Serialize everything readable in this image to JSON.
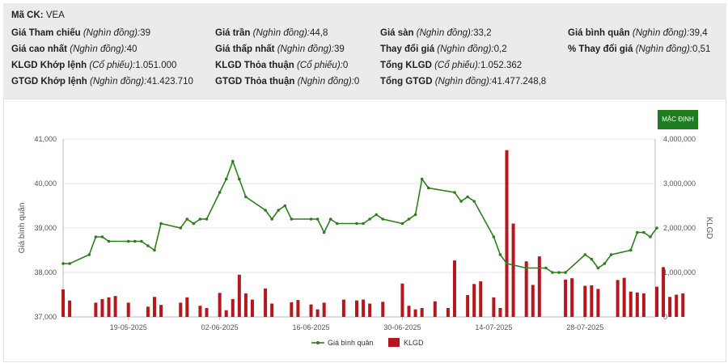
{
  "header": {
    "symbol": {
      "label": "Mã CK:",
      "value": "VEA"
    },
    "rows": [
      [
        {
          "label": "Giá Tham chiếu",
          "unit": "(Nghìn đồng):",
          "value": "39"
        },
        {
          "label": "Giá trần",
          "unit": "(Nghìn đồng):",
          "value": "44,8"
        },
        {
          "label": "Giá sàn",
          "unit": "(Nghìn đồng):",
          "value": "33,2"
        },
        {
          "label": "Giá bình quân",
          "unit": "(Nghìn đồng):",
          "value": "39,4"
        }
      ],
      [
        {
          "label": "Giá cao nhất",
          "unit": "(Nghìn đồng):",
          "value": "40"
        },
        {
          "label": "Giá thấp nhất",
          "unit": "(Nghìn đồng):",
          "value": "39"
        },
        {
          "label": "Thay đổi giá",
          "unit": "(Nghìn đồng):",
          "value": "0,2"
        },
        {
          "label": "% Thay đổi giá",
          "unit": "(Nghìn đồng):",
          "value": "0,51"
        }
      ],
      [
        {
          "label": "KLGD Khớp lệnh",
          "unit": "(Cổ phiếu):",
          "value": "1.051.000"
        },
        {
          "label": "KLGD Thỏa thuận",
          "unit": "(Cổ phiếu):",
          "value": "0"
        },
        {
          "label": "Tổng KLGD",
          "unit": "(Cổ phiếu):",
          "value": "1.052.362"
        }
      ],
      [
        {
          "label": "GTGD Khớp lệnh",
          "unit": "(Nghìn đồng):",
          "value": "41.423.710"
        },
        {
          "label": "GTGD Thỏa thuận",
          "unit": "(Nghìn đồng):",
          "value": "0"
        },
        {
          "label": "Tổng GTGD",
          "unit": "(Nghìn đồng):",
          "value": "41.477.248,8"
        }
      ]
    ]
  },
  "default_button": "MẶC ĐỊNH",
  "colors": {
    "line": "#2e7d1e",
    "bar": "#b5171e",
    "header_bg": "#ebebeb",
    "button": "#1e7d1e"
  },
  "chart_data": {
    "type": "line+bar",
    "ylabel_left": "Giá bình quân",
    "ylabel_right": "KLGD",
    "left_axis": {
      "min": 37000,
      "max": 41000,
      "ticks": [
        37000,
        38000,
        39000,
        40000,
        41000
      ],
      "tick_labels": [
        "37,000",
        "38,000",
        "39,000",
        "40,000",
        "41,000"
      ]
    },
    "right_axis": {
      "min": 0,
      "max": 4000000,
      "ticks": [
        0,
        1000000,
        2000000,
        3000000,
        4000000
      ],
      "tick_labels": [
        "0",
        "1,000,000",
        "2,000,000",
        "3,000,000",
        "4,000,000"
      ]
    },
    "x_range": [
      "2025-05-08",
      "2025-08-08"
    ],
    "x_ticks": [
      {
        "date": "2025-05-19",
        "label": "19-05-2025"
      },
      {
        "date": "2025-06-02",
        "label": "02-06-2025"
      },
      {
        "date": "2025-06-16",
        "label": "16-06-2025"
      },
      {
        "date": "2025-06-30",
        "label": "30-06-2025"
      },
      {
        "date": "2025-07-14",
        "label": "14-07-2025"
      },
      {
        "date": "2025-07-28",
        "label": "28-07-2025"
      }
    ],
    "legend": [
      {
        "name": "Giá bình quân",
        "kind": "line"
      },
      {
        "name": "KLGD",
        "kind": "bar"
      }
    ],
    "series": [
      {
        "name": "Giá bình quân",
        "kind": "line",
        "points": [
          [
            "2025-05-09",
            38200
          ],
          [
            "2025-05-10",
            38200
          ],
          [
            "2025-05-13",
            38400
          ],
          [
            "2025-05-14",
            38800
          ],
          [
            "2025-05-15",
            38800
          ],
          [
            "2025-05-16",
            38700
          ],
          [
            "2025-05-19",
            38700
          ],
          [
            "2025-05-20",
            38700
          ],
          [
            "2025-05-21",
            38700
          ],
          [
            "2025-05-22",
            38600
          ],
          [
            "2025-05-23",
            38500
          ],
          [
            "2025-05-24",
            39100
          ],
          [
            "2025-05-27",
            39000
          ],
          [
            "2025-05-28",
            39200
          ],
          [
            "2025-05-29",
            39100
          ],
          [
            "2025-05-30",
            39200
          ],
          [
            "2025-05-31",
            39200
          ],
          [
            "2025-06-02",
            39800
          ],
          [
            "2025-06-03",
            40100
          ],
          [
            "2025-06-04",
            40500
          ],
          [
            "2025-06-05",
            40100
          ],
          [
            "2025-06-06",
            39700
          ],
          [
            "2025-06-09",
            39400
          ],
          [
            "2025-06-10",
            39200
          ],
          [
            "2025-06-11",
            39400
          ],
          [
            "2025-06-12",
            39500
          ],
          [
            "2025-06-13",
            39200
          ],
          [
            "2025-06-16",
            39200
          ],
          [
            "2025-06-17",
            39200
          ],
          [
            "2025-06-18",
            38900
          ],
          [
            "2025-06-19",
            39200
          ],
          [
            "2025-06-20",
            39100
          ],
          [
            "2025-06-23",
            39100
          ],
          [
            "2025-06-24",
            39100
          ],
          [
            "2025-06-25",
            39200
          ],
          [
            "2025-06-26",
            39300
          ],
          [
            "2025-06-27",
            39200
          ],
          [
            "2025-06-30",
            39100
          ],
          [
            "2025-07-01",
            39200
          ],
          [
            "2025-07-02",
            39300
          ],
          [
            "2025-07-03",
            40100
          ],
          [
            "2025-07-04",
            39900
          ],
          [
            "2025-07-08",
            39800
          ],
          [
            "2025-07-09",
            39600
          ],
          [
            "2025-07-10",
            39700
          ],
          [
            "2025-07-11",
            39600
          ],
          [
            "2025-07-14",
            38800
          ],
          [
            "2025-07-15",
            38400
          ],
          [
            "2025-07-16",
            38200
          ],
          [
            "2025-07-19",
            38100
          ],
          [
            "2025-07-22",
            38100
          ],
          [
            "2025-07-23",
            38000
          ],
          [
            "2025-07-24",
            38000
          ],
          [
            "2025-07-25",
            38000
          ],
          [
            "2025-07-28",
            38400
          ],
          [
            "2025-07-29",
            38300
          ],
          [
            "2025-07-30",
            38100
          ],
          [
            "2025-07-31",
            38200
          ],
          [
            "2025-08-01",
            38400
          ],
          [
            "2025-08-04",
            38500
          ],
          [
            "2025-08-05",
            38900
          ],
          [
            "2025-08-06",
            38900
          ],
          [
            "2025-08-07",
            38800
          ],
          [
            "2025-08-08",
            39000
          ]
        ]
      },
      {
        "name": "KLGD",
        "kind": "bar",
        "points": [
          [
            "2025-05-09",
            620000
          ],
          [
            "2025-05-10",
            370000
          ],
          [
            "2025-05-14",
            320000
          ],
          [
            "2025-05-15",
            400000
          ],
          [
            "2025-05-16",
            440000
          ],
          [
            "2025-05-17",
            470000
          ],
          [
            "2025-05-19",
            320000
          ],
          [
            "2025-05-22",
            230000
          ],
          [
            "2025-05-23",
            450000
          ],
          [
            "2025-05-24",
            270000
          ],
          [
            "2025-05-27",
            320000
          ],
          [
            "2025-05-28",
            440000
          ],
          [
            "2025-05-30",
            250000
          ],
          [
            "2025-05-31",
            200000
          ],
          [
            "2025-06-02",
            540000
          ],
          [
            "2025-06-03",
            150000
          ],
          [
            "2025-06-04",
            400000
          ],
          [
            "2025-06-05",
            950000
          ],
          [
            "2025-06-06",
            530000
          ],
          [
            "2025-06-07",
            390000
          ],
          [
            "2025-06-09",
            640000
          ],
          [
            "2025-06-10",
            300000
          ],
          [
            "2025-06-13",
            330000
          ],
          [
            "2025-06-14",
            380000
          ],
          [
            "2025-06-16",
            280000
          ],
          [
            "2025-06-17",
            170000
          ],
          [
            "2025-06-18",
            320000
          ],
          [
            "2025-06-21",
            390000
          ],
          [
            "2025-06-23",
            370000
          ],
          [
            "2025-06-24",
            390000
          ],
          [
            "2025-06-25",
            300000
          ],
          [
            "2025-06-27",
            340000
          ],
          [
            "2025-06-30",
            750000
          ],
          [
            "2025-07-01",
            250000
          ],
          [
            "2025-07-02",
            170000
          ],
          [
            "2025-07-03",
            200000
          ],
          [
            "2025-07-05",
            350000
          ],
          [
            "2025-07-07",
            200000
          ],
          [
            "2025-07-08",
            1270000
          ],
          [
            "2025-07-10",
            490000
          ],
          [
            "2025-07-11",
            740000
          ],
          [
            "2025-07-12",
            800000
          ],
          [
            "2025-07-14",
            440000
          ],
          [
            "2025-07-15",
            200000
          ],
          [
            "2025-07-16",
            3750000
          ],
          [
            "2025-07-17",
            2100000
          ],
          [
            "2025-07-19",
            1250000
          ],
          [
            "2025-07-20",
            720000
          ],
          [
            "2025-07-21",
            1360000
          ],
          [
            "2025-07-25",
            840000
          ],
          [
            "2025-07-26",
            870000
          ],
          [
            "2025-07-28",
            700000
          ],
          [
            "2025-07-29",
            710000
          ],
          [
            "2025-07-30",
            630000
          ],
          [
            "2025-08-02",
            830000
          ],
          [
            "2025-08-03",
            880000
          ],
          [
            "2025-08-04",
            570000
          ],
          [
            "2025-08-05",
            550000
          ],
          [
            "2025-08-06",
            530000
          ],
          [
            "2025-08-08",
            680000
          ],
          [
            "2025-08-09",
            1120000
          ],
          [
            "2025-08-10",
            450000
          ],
          [
            "2025-08-11",
            500000
          ],
          [
            "2025-08-12",
            530000
          ]
        ]
      }
    ]
  }
}
